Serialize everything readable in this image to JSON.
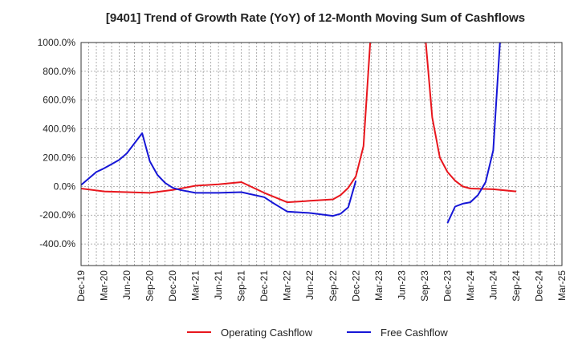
{
  "chart_data": {
    "type": "line",
    "title": "[9401]  Trend of Growth Rate (YoY) of 12-Month Moving Sum of Cashflows",
    "xlabel": "",
    "ylabel": "",
    "ylim": [
      -550,
      1000
    ],
    "y_ticks": [
      1000,
      800,
      600,
      400,
      200,
      0,
      -200,
      -400
    ],
    "y_tick_labels": [
      "1000.0%",
      "800.0%",
      "600.0%",
      "400.0%",
      "200.0%",
      "0.0%",
      "-200.0%",
      "-400.0%"
    ],
    "x_range": [
      "2019-12",
      "2025-03"
    ],
    "x_tick_labels": [
      "Dec-19",
      "Mar-20",
      "Jun-20",
      "Sep-20",
      "Dec-20",
      "Mar-21",
      "Jun-21",
      "Sep-21",
      "Dec-21",
      "Mar-22",
      "Jun-22",
      "Sep-22",
      "Dec-22",
      "Mar-23",
      "Jun-23",
      "Sep-23",
      "Dec-23",
      "Mar-24",
      "Jun-24",
      "Sep-24",
      "Dec-24",
      "Mar-25"
    ],
    "grid": true,
    "legend_position": "bottom",
    "series": [
      {
        "name": "Operating Cashflow",
        "color": "#e8161d",
        "points": [
          [
            "2019-12",
            -15
          ],
          [
            "2020-03",
            -35
          ],
          [
            "2020-06",
            -40
          ],
          [
            "2020-09",
            -45
          ],
          [
            "2020-12",
            -25
          ],
          [
            "2021-03",
            5
          ],
          [
            "2021-06",
            15
          ],
          [
            "2021-09",
            30
          ],
          [
            "2021-12",
            -45
          ],
          [
            "2022-03",
            -110
          ],
          [
            "2022-06",
            -100
          ],
          [
            "2022-09",
            -90
          ],
          [
            "2022-10",
            -60
          ],
          [
            "2022-11",
            -10
          ],
          [
            "2022-12",
            70
          ],
          [
            "2023-01",
            280
          ],
          [
            "2023-02",
            1100
          ],
          null,
          [
            "2023-09",
            1100
          ],
          [
            "2023-10",
            480
          ],
          [
            "2023-11",
            200
          ],
          [
            "2023-12",
            100
          ],
          [
            "2024-01",
            40
          ],
          [
            "2024-02",
            0
          ],
          [
            "2024-03",
            -15
          ],
          [
            "2024-06",
            -20
          ],
          [
            "2024-09",
            -35
          ]
        ]
      },
      {
        "name": "Free Cashflow",
        "color": "#1616d6",
        "points": [
          [
            "2019-12",
            10
          ],
          [
            "2020-01",
            55
          ],
          [
            "2020-02",
            100
          ],
          [
            "2020-03",
            125
          ],
          [
            "2020-04",
            155
          ],
          [
            "2020-05",
            185
          ],
          [
            "2020-06",
            230
          ],
          [
            "2020-08",
            370
          ],
          [
            "2020-09",
            175
          ],
          [
            "2020-10",
            80
          ],
          [
            "2020-11",
            25
          ],
          [
            "2020-12",
            -10
          ],
          [
            "2021-01",
            -25
          ],
          [
            "2021-03",
            -45
          ],
          [
            "2021-06",
            -45
          ],
          [
            "2021-09",
            -40
          ],
          [
            "2021-12",
            -75
          ],
          [
            "2022-01",
            -110
          ],
          [
            "2022-03",
            -175
          ],
          [
            "2022-06",
            -185
          ],
          [
            "2022-09",
            -205
          ],
          [
            "2022-10",
            -190
          ],
          [
            "2022-11",
            -145
          ],
          [
            "2022-12",
            40
          ],
          null,
          [
            "2023-12",
            -255
          ],
          [
            "2024-01",
            -140
          ],
          [
            "2024-02",
            -120
          ],
          [
            "2024-03",
            -110
          ],
          [
            "2024-04",
            -60
          ],
          [
            "2024-05",
            30
          ],
          [
            "2024-06",
            250
          ],
          [
            "2024-07",
            1100
          ]
        ]
      }
    ]
  }
}
